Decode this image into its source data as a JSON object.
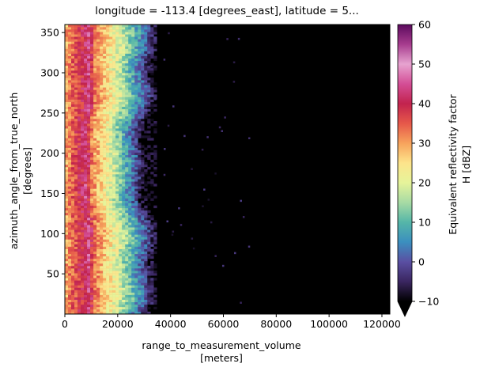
{
  "chart_data": {
    "type": "heatmap",
    "title": "longitude = -113.4 [degrees_east], latitude = 5...",
    "xlabel_line1": "range_to_measurement_volume",
    "xlabel_line2": "[meters]",
    "ylabel_line1": "azimuth_angle_from_true_north",
    "ylabel_line2": "[degrees]",
    "xlim": [
      0,
      123000
    ],
    "ylim": [
      0,
      360
    ],
    "x_ticks": [
      0,
      20000,
      40000,
      60000,
      80000,
      100000,
      120000
    ],
    "x_tick_labels": [
      "0",
      "20000",
      "40000",
      "60000",
      "80000",
      "100000",
      "120000"
    ],
    "y_ticks": [
      50,
      100,
      150,
      200,
      250,
      300,
      350
    ],
    "y_tick_labels": [
      "50",
      "100",
      "150",
      "200",
      "250",
      "300",
      "350"
    ],
    "colorbar": {
      "label_line1": "Equivalent reflectivity factor",
      "label_line2": "H [dBZ]",
      "vmin": -10,
      "vmax": 60,
      "extend": "min",
      "ticks": [
        -10,
        0,
        10,
        20,
        30,
        40,
        50,
        60
      ],
      "tick_labels": [
        "−10",
        "0",
        "10",
        "20",
        "30",
        "40",
        "50",
        "60"
      ],
      "colormap": "Spectral_r",
      "colors": [
        "#000000",
        "#3a2660",
        "#5a4fa2",
        "#3b8fbf",
        "#55b6a8",
        "#a7dba4",
        "#e6f49a",
        "#fde48b",
        "#f7a35c",
        "#e6584a",
        "#c2234e",
        "#d44e96",
        "#e7a3d0",
        "#a73c8e",
        "#5b0a5d"
      ]
    },
    "profile_range_m": [
      0,
      3000,
      6000,
      8000,
      10000,
      14000,
      18000,
      22000,
      26000,
      29000,
      32000,
      40000,
      123000
    ],
    "profile_dbz": [
      30,
      36,
      40,
      44,
      33,
      26,
      20,
      12,
      4,
      -3,
      -10,
      -10,
      -10
    ]
  }
}
